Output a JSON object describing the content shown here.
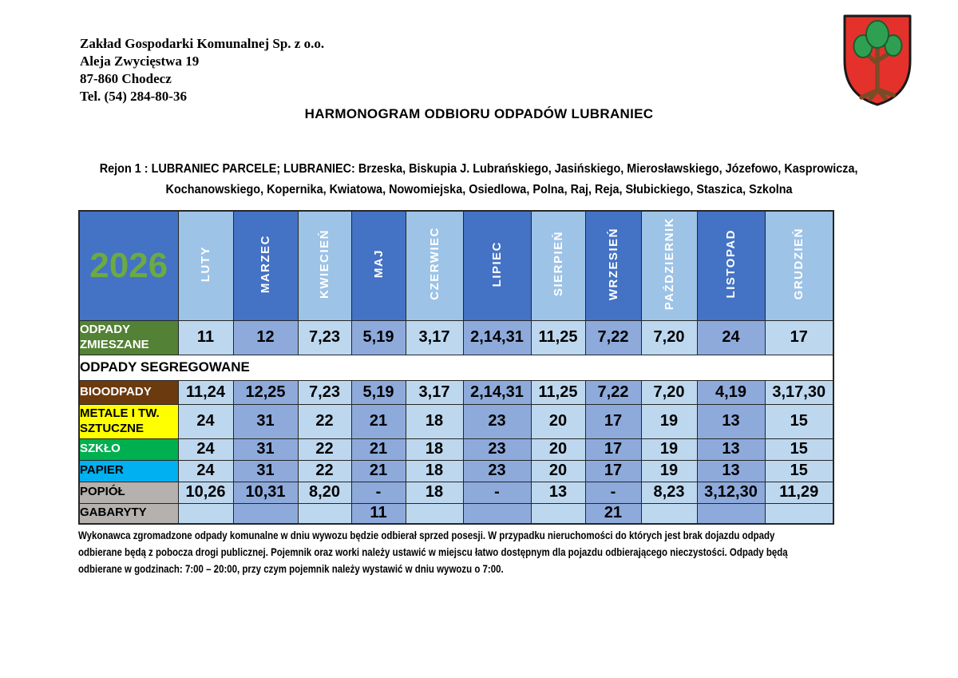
{
  "org": {
    "lines": [
      "Zakład Gospodarki Komunalnej Sp. z o.o.",
      "Aleja Zwycięstwa 19",
      "87-860 Chodecz",
      "Tel. (54) 284-80-36"
    ]
  },
  "title": "HARMONOGRAM ODBIORU ODPADÓW LUBRANIEC",
  "region": {
    "lines": [
      "Rejon 1 : LUBRANIEC PARCELE; LUBRANIEC: Brzeska, Biskupia J. Lubrańskiego, Jasińskiego, Mierosławskiego, Józefowo, Kasprowicza,",
      "Kochanowskiego, Kopernika, Kwiatowa, Nowomiejska, Osiedlowa, Polna, Raj, Reja, Słubickiego, Staszica, Szkolna"
    ]
  },
  "crest": {
    "name": "herb-lubraniec-coat-of-arms-red-shield-with-tree"
  },
  "schedule": {
    "year": "2026",
    "months": [
      "LUTY",
      "MARZEC",
      "KWIECIEŃ",
      "MAJ",
      "CZERWIEC",
      "LIPIEC",
      "SIERPIEŃ",
      "WRZESIEŃ",
      "PAŹDZIERNIK",
      "LISTOPAD",
      "GRUDZIEŃ"
    ],
    "rows": [
      {
        "type": "data",
        "label": "ODPADY ZMIESZANE",
        "label_bg": "#538135",
        "label_fg": "#FFFFFF",
        "values": [
          "11",
          "12",
          "7,23",
          "5,19",
          "3,17",
          "2,14,31",
          "11,25",
          "7,22",
          "7,20",
          "24",
          "17"
        ]
      },
      {
        "type": "section",
        "label": "ODPADY SEGREGOWANE"
      },
      {
        "type": "data",
        "label": "BIOODPADY",
        "label_bg": "#6B3A0F",
        "label_fg": "#FFFFFF",
        "values": [
          "11,24",
          "12,25",
          "7,23",
          "5,19",
          "3,17",
          "2,14,31",
          "11,25",
          "7,22",
          "7,20",
          "4,19",
          "3,17,30"
        ]
      },
      {
        "type": "data",
        "label": "METALE I TW. SZTUCZNE",
        "label_bg": "#FFFF00",
        "label_fg": "#000000",
        "values": [
          "24",
          "31",
          "22",
          "21",
          "18",
          "23",
          "20",
          "17",
          "19",
          "13",
          "15"
        ]
      },
      {
        "type": "data",
        "label": "SZKŁO",
        "label_bg": "#00B050",
        "label_fg": "#FFFFFF",
        "values": [
          "24",
          "31",
          "22",
          "21",
          "18",
          "23",
          "20",
          "17",
          "19",
          "13",
          "15"
        ]
      },
      {
        "type": "data",
        "label": "PAPIER",
        "label_bg": "#00B0F0",
        "label_fg": "#000000",
        "values": [
          "24",
          "31",
          "22",
          "21",
          "18",
          "23",
          "20",
          "17",
          "19",
          "13",
          "15"
        ]
      },
      {
        "type": "data",
        "label": "POPIÓŁ",
        "label_bg": "#B5B1AE",
        "label_fg": "#000000",
        "values": [
          "10,26",
          "10,31",
          "8,20",
          "-",
          "18",
          "-",
          "13",
          "-",
          "8,23",
          "3,12,30",
          "11,29"
        ]
      },
      {
        "type": "data",
        "label": "GABARYTY",
        "label_bg": "#B5B1AE",
        "label_fg": "#000000",
        "values": [
          "",
          "",
          "",
          "11",
          "",
          "",
          "",
          "21",
          "",
          "",
          ""
        ]
      }
    ]
  },
  "footer": {
    "lines": [
      "Wykonawca zgromadzone odpady komunalne w dniu wywozu będzie odbierał sprzed posesji. W przypadku nieruchomości do których jest brak dojazdu odpady",
      "odbierane będą z pobocza drogi publicznej. Pojemnik oraz worki należy ustawić w miejscu łatwo dostępnym dla pojazdu odbierającego nieczystości. Odpady będą",
      "odbierane w godzinach: 7:00 – 20:00, przy czym pojemnik należy wystawić w dniu wywozu o 7:00."
    ]
  },
  "colors": {
    "header_dark": "#4472C4",
    "header_light": "#9DC3E6",
    "cell_light": "#BDD7EE",
    "cell_dark": "#8EAADB",
    "year_green": "#6CAA42",
    "grid_border": "#262626",
    "crest_red": "#E5312B",
    "crest_outline": "#1A1A1A",
    "crest_green": "#2FA052",
    "crest_green_dark": "#1C5C2E",
    "crest_brown": "#7B4B26",
    "crest_brown_dark": "#5A3418"
  }
}
